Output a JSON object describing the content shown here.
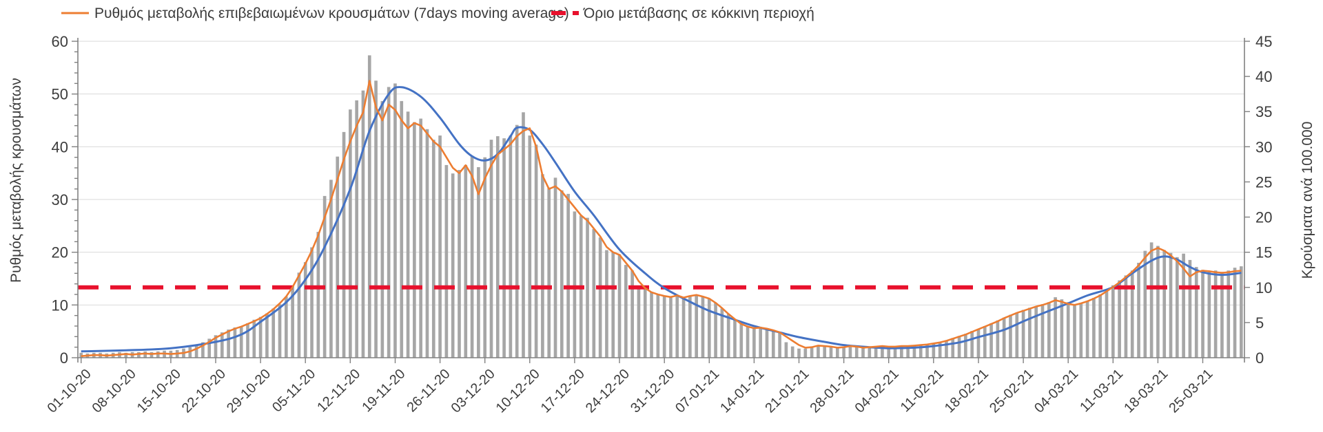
{
  "legend": {
    "ma_label": "Ρυθμός μεταβολής επιβεβαιωμένων κρουσμάτων (7days moving average)",
    "threshold_label": "Όριο μετάβασης σε κόκκινη περιοχή"
  },
  "axes": {
    "left_title": "Ρυθμός μεταβολής κρουσμάτων",
    "right_title": "Κρούσματα ανά 100.000",
    "left_ticks": [
      0,
      10,
      20,
      30,
      40,
      50,
      60
    ],
    "right_ticks": [
      0,
      5,
      10,
      15,
      20,
      25,
      30,
      35,
      40,
      45
    ],
    "x_tick_labels": [
      "01-10-20",
      "08-10-20",
      "15-10-20",
      "22-10-20",
      "29-10-20",
      "05-11-20",
      "12-11-20",
      "19-11-20",
      "26-11-20",
      "03-12-20",
      "10-12-20",
      "17-12-20",
      "24-12-20",
      "31-12-20",
      "07-01-21",
      "14-01-21",
      "21-01-21",
      "28-01-21",
      "04-02-21",
      "11-02-21",
      "18-02-21",
      "25-02-21",
      "04-03-21",
      "11-03-21",
      "18-03-21",
      "25-03-21"
    ]
  },
  "colors": {
    "bars": "#A6A6A6",
    "ma_line": "#ED7D31",
    "trend_line": "#4472C4",
    "threshold": "#E8112D",
    "gridline": "#D9D9D9",
    "axis_line": "#808080",
    "text": "#3d3d3d"
  },
  "chart_data": {
    "type": "combo",
    "x_start": "01-10-20",
    "x_end": "31-03-21",
    "n_days": 182,
    "left_axis": {
      "label": "Ρυθμός μεταβολής κρουσμάτων",
      "range": [
        0,
        60
      ],
      "tick_step": 10
    },
    "right_axis": {
      "label": "Κρούσματα ανά 100.000",
      "range": [
        0,
        45
      ],
      "tick_step": 5
    },
    "grid": "horizontal",
    "legend_position": "top",
    "series": [
      {
        "name": "Κρούσματα ανά 100.000 (daily)",
        "type": "bar",
        "axis": "right",
        "values": [
          0.7,
          0.6,
          0.7,
          0.7,
          0.6,
          0.7,
          0.8,
          0.7,
          0.8,
          0.8,
          0.9,
          0.8,
          0.9,
          1.0,
          1.0,
          1.1,
          1.3,
          1.5,
          1.8,
          2.2,
          2.7,
          3.2,
          3.6,
          4.0,
          4.3,
          4.5,
          4.9,
          5.4,
          5.8,
          6.3,
          7.0,
          7.6,
          8.7,
          10.2,
          12.1,
          13.6,
          15.7,
          17.9,
          23.0,
          25.3,
          28.6,
          32.1,
          35.3,
          36.6,
          38.0,
          43.0,
          39.4,
          36.5,
          38.5,
          39.0,
          36.5,
          35.0,
          33.5,
          34.0,
          32.5,
          31.0,
          31.6,
          27.4,
          26.2,
          26.7,
          27.4,
          28.7,
          27.1,
          28.5,
          31.0,
          31.5,
          31.2,
          31.6,
          33.1,
          34.9,
          31.6,
          30.3,
          26.1,
          24.2,
          25.6,
          23.8,
          23.3,
          20.8,
          20.2,
          19.9,
          18.3,
          17.1,
          15.3,
          15.0,
          14.7,
          13.2,
          12.4,
          10.2,
          9.7,
          9.3,
          9.0,
          8.8,
          8.6,
          8.9,
          8.5,
          8.8,
          8.9,
          8.7,
          8.4,
          7.8,
          7.0,
          6.2,
          5.5,
          4.8,
          4.4,
          4.2,
          4.3,
          4.1,
          3.9,
          3.6,
          2.2,
          1.6,
          1.3,
          1.3,
          1.5,
          1.7,
          1.6,
          1.5,
          1.4,
          1.5,
          1.6,
          1.5,
          1.4,
          1.5,
          1.6,
          1.6,
          1.5,
          1.6,
          1.7,
          1.6,
          1.7,
          1.8,
          1.9,
          2.0,
          2.2,
          2.5,
          2.8,
          3.1,
          3.4,
          3.8,
          4.1,
          4.5,
          4.9,
          5.3,
          5.7,
          6.1,
          6.4,
          6.8,
          7.1,
          7.3,
          7.6,
          7.9,
          8.6,
          8.3,
          7.9,
          7.6,
          7.8,
          8.1,
          8.5,
          9.0,
          9.6,
          10.3,
          11.0,
          11.7,
          12.4,
          13.5,
          15.2,
          16.4,
          15.9,
          15.3,
          14.9,
          14.3,
          14.8,
          13.9,
          12.9,
          12.5,
          12.3,
          12.4,
          12.2,
          12.4,
          12.8,
          13.0
        ]
      },
      {
        "name": "Ρυθμός μεταβολής επιβεβαιωμένων κρουσμάτων (7days moving average)",
        "type": "line",
        "axis": "left",
        "values": [
          0.3,
          0.4,
          0.5,
          0.5,
          0.4,
          0.5,
          0.6,
          0.7,
          0.6,
          0.7,
          0.8,
          0.7,
          0.8,
          0.8,
          0.7,
          0.8,
          0.9,
          1.2,
          1.7,
          2.3,
          3.0,
          3.8,
          4.4,
          5.0,
          5.5,
          5.9,
          6.4,
          6.9,
          7.5,
          8.3,
          9.2,
          10.3,
          11.6,
          13.4,
          15.6,
          17.8,
          20.3,
          23.2,
          26.6,
          30.0,
          33.8,
          37.6,
          41.0,
          44.0,
          46.5,
          52.5,
          47.5,
          45.0,
          48.0,
          47.0,
          45.0,
          43.5,
          44.5,
          44.0,
          42.5,
          41.0,
          40.0,
          38.0,
          36.0,
          35.0,
          36.5,
          34.5,
          31.0,
          34.0,
          36.5,
          38.5,
          39.5,
          40.5,
          42.0,
          43.0,
          43.5,
          40.0,
          34.5,
          32.0,
          32.5,
          31.5,
          30.0,
          28.5,
          27.0,
          26.0,
          24.5,
          23.0,
          21.0,
          20.0,
          19.5,
          18.0,
          16.5,
          14.5,
          13.2,
          12.4,
          12.0,
          11.7,
          11.5,
          11.8,
          11.4,
          11.7,
          11.9,
          11.6,
          11.2,
          10.4,
          9.4,
          8.3,
          7.3,
          6.4,
          5.9,
          5.6,
          5.7,
          5.5,
          5.2,
          4.8,
          4.0,
          3.2,
          2.4,
          1.9,
          2.0,
          2.3,
          2.2,
          2.1,
          1.9,
          2.0,
          2.2,
          2.1,
          1.9,
          2.0,
          2.1,
          2.2,
          2.1,
          2.1,
          2.2,
          2.2,
          2.3,
          2.4,
          2.5,
          2.7,
          2.9,
          3.2,
          3.6,
          4.0,
          4.4,
          4.9,
          5.4,
          5.9,
          6.4,
          6.9,
          7.5,
          8.0,
          8.5,
          8.9,
          9.3,
          9.7,
          10.0,
          10.4,
          10.9,
          10.6,
          10.2,
          10.0,
          10.3,
          10.7,
          11.2,
          11.8,
          12.6,
          13.4,
          14.3,
          15.3,
          16.3,
          17.5,
          19.0,
          20.3,
          20.8,
          20.3,
          19.4,
          18.3,
          16.9,
          15.4,
          16.2,
          16.5,
          16.4,
          16.2,
          16.1,
          16.2,
          16.4,
          16.5
        ]
      },
      {
        "name": "smoothed trend (no legend entry)",
        "type": "line-smooth",
        "axis": "left",
        "anchors": [
          [
            0,
            1.2
          ],
          [
            7,
            1.4
          ],
          [
            14,
            1.8
          ],
          [
            21,
            3.0
          ],
          [
            25,
            4.4
          ],
          [
            28,
            6.8
          ],
          [
            32,
            10.5
          ],
          [
            35,
            14.8
          ],
          [
            38,
            21
          ],
          [
            42,
            32
          ],
          [
            45,
            43
          ],
          [
            48,
            50
          ],
          [
            50,
            51.3
          ],
          [
            53,
            49.5
          ],
          [
            56,
            45.5
          ],
          [
            59,
            40.5
          ],
          [
            61,
            38.2
          ],
          [
            63,
            37.4
          ],
          [
            65,
            38.6
          ],
          [
            67,
            42
          ],
          [
            68,
            43.6
          ],
          [
            70,
            43.2
          ],
          [
            72,
            40.5
          ],
          [
            74,
            37
          ],
          [
            77,
            31.5
          ],
          [
            80,
            27
          ],
          [
            84,
            20.5
          ],
          [
            88,
            16
          ],
          [
            91,
            13.2
          ],
          [
            95,
            10.6
          ],
          [
            98,
            8.9
          ],
          [
            102,
            7.2
          ],
          [
            105,
            6.0
          ],
          [
            109,
            4.8
          ],
          [
            112,
            3.9
          ],
          [
            116,
            3.0
          ],
          [
            119,
            2.4
          ],
          [
            123,
            2.0
          ],
          [
            126,
            1.8
          ],
          [
            130,
            1.9
          ],
          [
            133,
            2.2
          ],
          [
            137,
            2.9
          ],
          [
            140,
            3.9
          ],
          [
            144,
            5.3
          ],
          [
            147,
            6.9
          ],
          [
            150,
            8.4
          ],
          [
            154,
            10.3
          ],
          [
            157,
            11.8
          ],
          [
            161,
            13.4
          ],
          [
            164,
            16.0
          ],
          [
            167,
            18.4
          ],
          [
            169,
            19.2
          ],
          [
            171,
            18.6
          ],
          [
            173,
            17.2
          ],
          [
            175,
            16.2
          ],
          [
            178,
            15.7
          ],
          [
            181,
            16.1
          ]
        ]
      },
      {
        "name": "Όριο μετάβασης σε κόκκινη περιοχή",
        "type": "threshold",
        "axis": "right",
        "value": 10
      }
    ]
  }
}
